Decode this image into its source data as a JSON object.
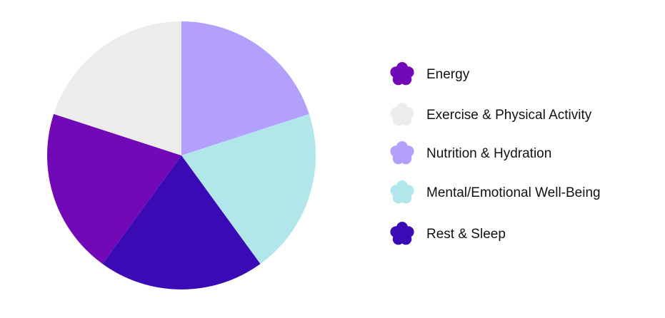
{
  "chart_data": {
    "type": "pie",
    "categories": [
      "Energy",
      "Exercise & Physical Activity",
      "Nutrition & Hydration",
      "Mental/Emotional Well-Being",
      "Rest & Sleep"
    ],
    "values": [
      20,
      20,
      20,
      20,
      20
    ],
    "colors": [
      "#7209b7",
      "#ececec",
      "#b3a0fd",
      "#b1e6ea",
      "#3a0ab5"
    ],
    "legend": "right"
  }
}
